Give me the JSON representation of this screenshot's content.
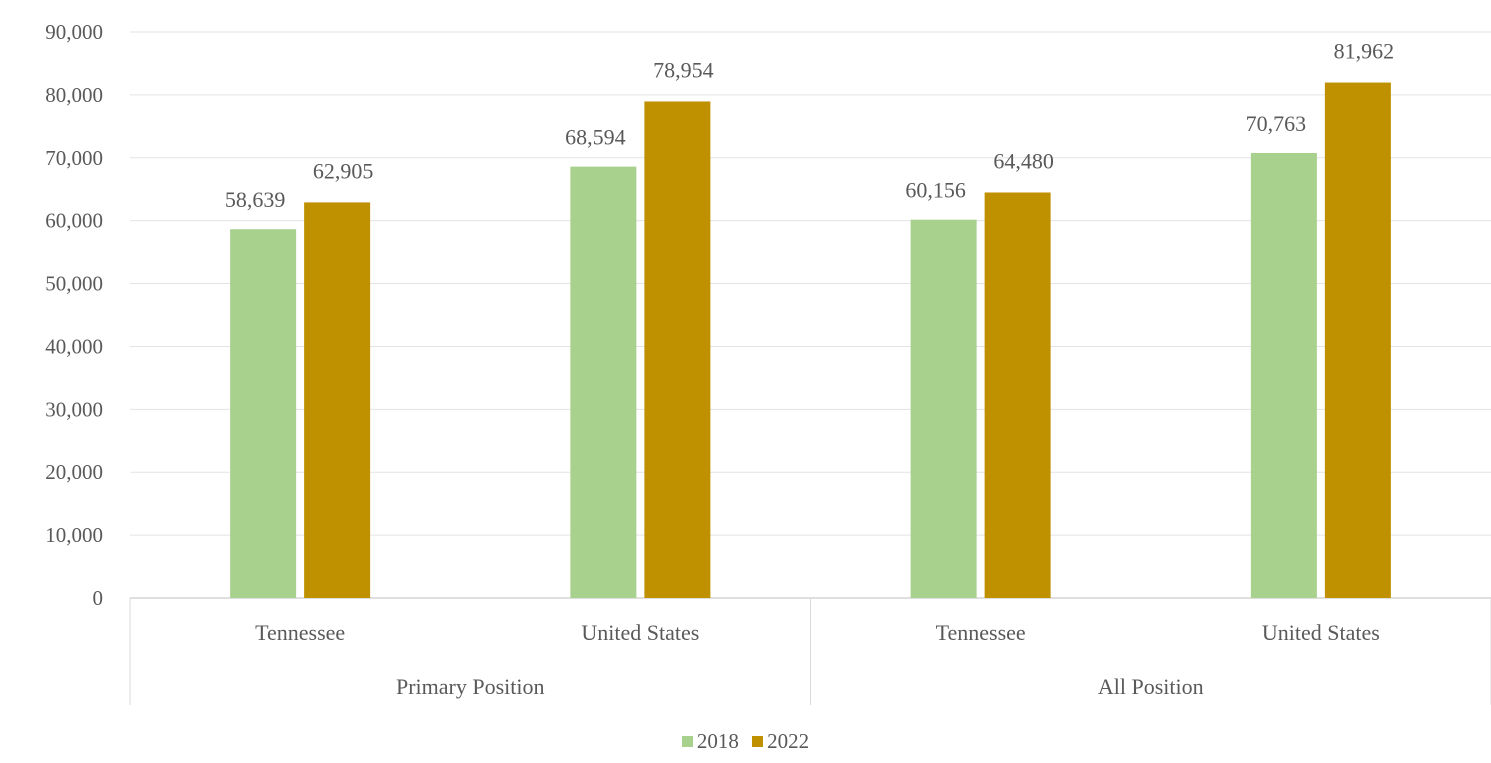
{
  "chart_data": {
    "type": "bar",
    "categories": [
      "Tennessee",
      "United States",
      "Tennessee",
      "United States"
    ],
    "groups": [
      {
        "label": "Primary Position",
        "categories": [
          "Tennessee",
          "United States"
        ]
      },
      {
        "label": "All Position",
        "categories": [
          "Tennessee",
          "United States"
        ]
      }
    ],
    "series": [
      {
        "name": "2018",
        "color": "#a9d18e",
        "values": [
          58639,
          68594,
          60156,
          70763
        ],
        "labels": [
          "58,639",
          "68,594",
          "60,156",
          "70,763"
        ]
      },
      {
        "name": "2022",
        "color": "#bf9000",
        "values": [
          62905,
          78954,
          64480,
          81962
        ],
        "labels": [
          "62,905",
          "78,954",
          "64,480",
          "81,962"
        ]
      }
    ],
    "ylim": [
      0,
      90000
    ],
    "yticks": [
      "0",
      "10,000",
      "20,000",
      "30,000",
      "40,000",
      "50,000",
      "60,000",
      "70,000",
      "80,000",
      "90,000"
    ],
    "grid": true,
    "legend_position": "bottom"
  }
}
